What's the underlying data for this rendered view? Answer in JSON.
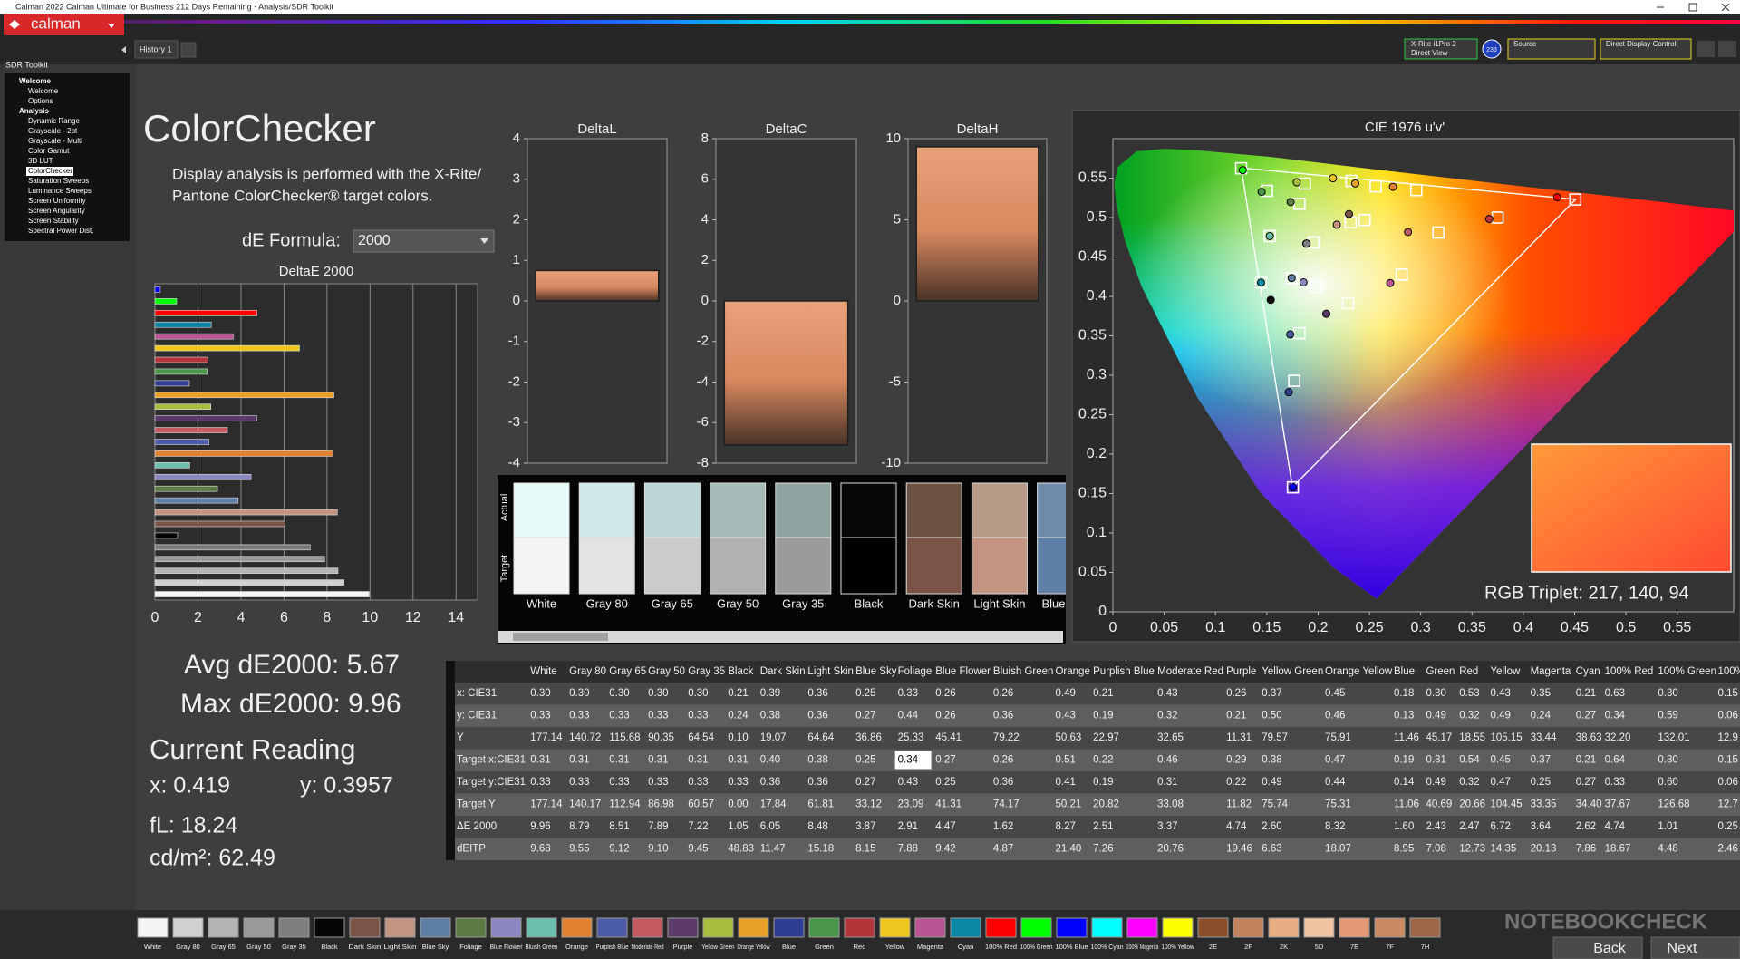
{
  "window": {
    "title": "Calman 2022 Calman Ultimate for Business 212 Days Remaining - Analysis/SDR Toolkit",
    "logo": "calman",
    "tab": "History 1",
    "meter": "X-Rite i1Pro 2",
    "meter_mode": "Direct View",
    "meter_badge": "233",
    "source": "Source",
    "display": "Direct Display Control"
  },
  "sidebar": {
    "title": "SDR Toolkit",
    "selected": 10,
    "items": [
      {
        "label": "Welcome",
        "level": 0
      },
      {
        "label": "Welcome",
        "level": 1
      },
      {
        "label": "Options",
        "level": 1
      },
      {
        "label": "Analysis",
        "level": 0
      },
      {
        "label": "Dynamic Range",
        "level": 1
      },
      {
        "label": "Grayscale - 2pt",
        "level": 1
      },
      {
        "label": "Grayscale - Multi",
        "level": 1
      },
      {
        "label": "Color Gamut",
        "level": 1
      },
      {
        "label": "3D LUT",
        "level": 1
      },
      {
        "label": "ColorChecker",
        "level": 1
      },
      {
        "label": "Saturation Sweeps",
        "level": 1
      },
      {
        "label": "Luminance Sweeps",
        "level": 1
      },
      {
        "label": "Screen Uniformity",
        "level": 1
      },
      {
        "label": "Screen Angularity",
        "level": 1
      },
      {
        "label": "Screen Stability",
        "level": 1
      },
      {
        "label": "Spectral Power Dist.",
        "level": 1
      }
    ]
  },
  "page": {
    "title": "ColorChecker",
    "description": [
      "Display analysis is performed with the X-Rite/",
      "Pantone ColorChecker® target colors."
    ],
    "formula_label": "dE Formula:",
    "formula_value": "2000",
    "avg": "Avg dE2000: 5.67",
    "max": "Max dE2000: 9.96",
    "reading_title": "Current Reading",
    "reading_x": "x: 0.419",
    "reading_y": "y: 0.3957",
    "reading_fl": "fL: 18.24",
    "reading_cd": "cd/m²: 62.49"
  },
  "delta_e_chart": {
    "type": "bar",
    "title": "DeltaE 2000",
    "xlim": [
      0,
      15
    ],
    "xticks": [
      0,
      2,
      4,
      6,
      8,
      10,
      12,
      14
    ]
  },
  "delta_charts": [
    {
      "type": "bar",
      "title": "DeltaL",
      "value": 0.75,
      "ylim": [
        -4,
        4
      ],
      "yticks": [
        -4,
        -3,
        -2,
        -1,
        0,
        1,
        2,
        3,
        4
      ]
    },
    {
      "type": "bar",
      "title": "DeltaC",
      "value": -7.1,
      "ylim": [
        -8,
        8
      ],
      "yticks": [
        -8,
        -6,
        -4,
        -2,
        0,
        2,
        4,
        6,
        8
      ]
    },
    {
      "type": "bar",
      "title": "DeltaH",
      "value": 9.5,
      "ylim": [
        -10,
        10
      ],
      "yticks": [
        -10,
        -5,
        0,
        5,
        10
      ]
    }
  ],
  "patches": {
    "row_labels": [
      "Actual",
      "Target"
    ],
    "items": [
      {
        "label": "White",
        "actual": "#e6fafa",
        "target": "#f4f4f4"
      },
      {
        "label": "Gray 80",
        "actual": "#d0e8e9",
        "target": "#e3e3e3"
      },
      {
        "label": "Gray 65",
        "actual": "#bcd5d5",
        "target": "#cbcbcb"
      },
      {
        "label": "Gray 50",
        "actual": "#a4bbb8",
        "target": "#b1b1b1"
      },
      {
        "label": "Gray 35",
        "actual": "#8fa3a0",
        "target": "#9b9b9b"
      },
      {
        "label": "Black",
        "actual": "#070707",
        "target": "#000000"
      },
      {
        "label": "Dark Skin",
        "actual": "#6c5243",
        "target": "#7a5446"
      },
      {
        "label": "Light Skin",
        "actual": "#b79a87",
        "target": "#c49482"
      },
      {
        "label": "Blue Sky",
        "actual": "#6e8ba9",
        "target": "#5f7fa6"
      }
    ]
  },
  "cie": {
    "type": "scatter",
    "title": "CIE 1976 u'v'",
    "xlim": [
      0,
      0.605
    ],
    "ylim": [
      0,
      0.6
    ],
    "xticks": [
      0,
      0.05,
      0.1,
      0.15,
      0.2,
      0.25,
      0.3,
      0.35,
      0.4,
      0.45,
      0.5,
      0.55
    ],
    "yticks": [
      0,
      0.05,
      0.1,
      0.15,
      0.2,
      0.25,
      0.3,
      0.35,
      0.4,
      0.45,
      0.5,
      0.55
    ],
    "rgb_triplet": "RGB Triplet: 217, 140, 94"
  },
  "table": {
    "selected_cell": [
      3,
      9
    ],
    "columns": [
      "White",
      "Gray 80",
      "Gray 65",
      "Gray 50",
      "Gray 35",
      "Black",
      "Dark Skin",
      "Light Skin",
      "Blue Sky",
      "Foliage",
      "Blue Flower",
      "Bluish Green",
      "Orange",
      "Purplish Blue",
      "Moderate Red",
      "Purple",
      "Yellow Green",
      "Orange Yellow",
      "Blue",
      "Green",
      "Red",
      "Yellow",
      "Magenta",
      "Cyan",
      "100% Red",
      "100% Green",
      "100%"
    ],
    "rows": [
      {
        "label": "x: CIE31",
        "values": [
          "0.30",
          "0.30",
          "0.30",
          "0.30",
          "0.30",
          "0.21",
          "0.39",
          "0.36",
          "0.25",
          "0.33",
          "0.26",
          "0.26",
          "0.49",
          "0.21",
          "0.43",
          "0.26",
          "0.37",
          "0.45",
          "0.18",
          "0.30",
          "0.53",
          "0.43",
          "0.35",
          "0.21",
          "0.63",
          "0.30",
          "0.15"
        ]
      },
      {
        "label": "y: CIE31",
        "values": [
          "0.33",
          "0.33",
          "0.33",
          "0.33",
          "0.33",
          "0.24",
          "0.38",
          "0.36",
          "0.27",
          "0.44",
          "0.26",
          "0.36",
          "0.43",
          "0.19",
          "0.32",
          "0.21",
          "0.50",
          "0.46",
          "0.13",
          "0.49",
          "0.32",
          "0.49",
          "0.24",
          "0.27",
          "0.34",
          "0.59",
          "0.06"
        ]
      },
      {
        "label": "Y",
        "values": [
          "177.14",
          "140.72",
          "115.68",
          "90.35",
          "64.54",
          "0.10",
          "19.07",
          "64.64",
          "36.86",
          "25.33",
          "45.41",
          "79.22",
          "50.63",
          "22.97",
          "32.65",
          "11.31",
          "79.57",
          "75.91",
          "11.46",
          "45.17",
          "18.55",
          "105.15",
          "33.44",
          "38.63",
          "32.20",
          "132.01",
          "12.9"
        ]
      },
      {
        "label": "Target x:CIE31",
        "values": [
          "0.31",
          "0.31",
          "0.31",
          "0.31",
          "0.31",
          "0.31",
          "0.40",
          "0.38",
          "0.25",
          "0.34",
          "0.27",
          "0.26",
          "0.51",
          "0.22",
          "0.46",
          "0.29",
          "0.38",
          "0.47",
          "0.19",
          "0.31",
          "0.54",
          "0.45",
          "0.37",
          "0.21",
          "0.64",
          "0.30",
          "0.15"
        ]
      },
      {
        "label": "Target y:CIE31",
        "values": [
          "0.33",
          "0.33",
          "0.33",
          "0.33",
          "0.33",
          "0.33",
          "0.36",
          "0.36",
          "0.27",
          "0.43",
          "0.25",
          "0.36",
          "0.41",
          "0.19",
          "0.31",
          "0.22",
          "0.49",
          "0.44",
          "0.14",
          "0.49",
          "0.32",
          "0.47",
          "0.25",
          "0.27",
          "0.33",
          "0.60",
          "0.06"
        ]
      },
      {
        "label": "Target Y",
        "values": [
          "177.14",
          "140.17",
          "112.94",
          "86.98",
          "60.57",
          "0.00",
          "17.84",
          "61.81",
          "33.12",
          "23.09",
          "41.31",
          "74.17",
          "50.21",
          "20.82",
          "33.08",
          "11.82",
          "75.74",
          "75.31",
          "11.06",
          "40.69",
          "20.66",
          "104.45",
          "33.35",
          "34.40",
          "37.67",
          "126.68",
          "12.7"
        ]
      },
      {
        "label": "ΔE 2000",
        "values": [
          "9.96",
          "8.79",
          "8.51",
          "7.89",
          "7.22",
          "1.05",
          "6.05",
          "8.48",
          "3.87",
          "2.91",
          "4.47",
          "1.62",
          "8.27",
          "2.51",
          "3.37",
          "4.74",
          "2.60",
          "8.32",
          "1.60",
          "2.43",
          "2.47",
          "6.72",
          "3.64",
          "2.62",
          "4.74",
          "1.01",
          "0.25"
        ]
      },
      {
        "label": "dEITP",
        "values": [
          "9.68",
          "9.55",
          "9.12",
          "9.10",
          "9.45",
          "48.83",
          "11.47",
          "15.18",
          "8.15",
          "7.88",
          "9.42",
          "4.87",
          "21.40",
          "7.26",
          "20.76",
          "19.46",
          "6.63",
          "18.07",
          "8.95",
          "7.08",
          "12.73",
          "14.35",
          "20.13",
          "7.86",
          "18.67",
          "4.48",
          "2.46"
        ]
      }
    ]
  },
  "palette": [
    {
      "label": "White",
      "color": "#f5f5f5"
    },
    {
      "label": "Gray 80",
      "color": "#d0d0d0"
    },
    {
      "label": "Gray 65",
      "color": "#b4b4b4"
    },
    {
      "label": "Gray 50",
      "color": "#9a9a9a"
    },
    {
      "label": "Gray 35",
      "color": "#7e7e7e"
    },
    {
      "label": "Black",
      "color": "#050505"
    },
    {
      "label": "Dark Skin",
      "color": "#7a5446"
    },
    {
      "label": "Light Skin",
      "color": "#c39482"
    },
    {
      "label": "Blue Sky",
      "color": "#5f7fa6"
    },
    {
      "label": "Foliage",
      "color": "#5c7a44"
    },
    {
      "label": "Blue Flower",
      "color": "#8b87bf"
    },
    {
      "label": "Bluish Green",
      "color": "#6cbeaf"
    },
    {
      "label": "Orange",
      "color": "#e0822f"
    },
    {
      "label": "Purplish Blue",
      "color": "#4c5ca8"
    },
    {
      "label": "Moderate Red",
      "color": "#c65a62"
    },
    {
      "label": "Purple",
      "color": "#5c3a6a"
    },
    {
      "label": "Yellow Green",
      "color": "#a7bd3e"
    },
    {
      "label": "Orange Yellow",
      "color": "#e8a22a"
    },
    {
      "label": "Blue",
      "color": "#2f3d92"
    },
    {
      "label": "Green",
      "color": "#4a9648"
    },
    {
      "label": "Red",
      "color": "#b3353a"
    },
    {
      "label": "Yellow",
      "color": "#eec720"
    },
    {
      "label": "Magenta",
      "color": "#bb5495"
    },
    {
      "label": "Cyan",
      "color": "#0b86a5"
    },
    {
      "label": "100% Red",
      "color": "#ff0000"
    },
    {
      "label": "100% Green",
      "color": "#00ff00"
    },
    {
      "label": "100% Blue",
      "color": "#0000ff"
    },
    {
      "label": "100% Cyan",
      "color": "#00ffff"
    },
    {
      "label": "100% Magenta",
      "color": "#ff00ff"
    },
    {
      "label": "100% Yellow",
      "color": "#ffff00"
    },
    {
      "label": "2E",
      "color": "#8a4f2a"
    },
    {
      "label": "2F",
      "color": "#c2825e"
    },
    {
      "label": "2K",
      "color": "#e8ad82"
    },
    {
      "label": "5D",
      "color": "#f2c3a0"
    },
    {
      "label": "7E",
      "color": "#e39a74"
    },
    {
      "label": "7F",
      "color": "#c98a62"
    },
    {
      "label": "7H",
      "color": "#9c6848"
    }
  ],
  "nav": {
    "back": "Back",
    "next": "Next"
  },
  "watermark": "NOTEBOOKCHECK"
}
